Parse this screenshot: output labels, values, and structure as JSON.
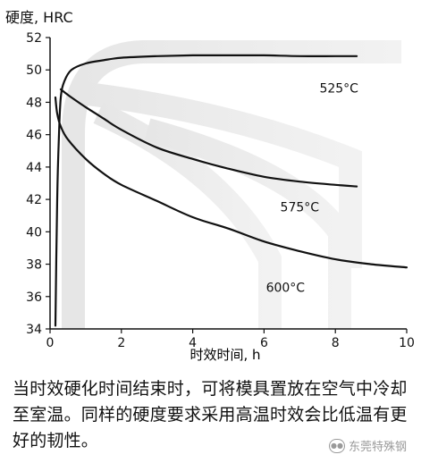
{
  "chart_data": {
    "type": "line",
    "ylabel": "硬度, HRC",
    "xlabel": "时效时间, h",
    "xlim": [
      0,
      10
    ],
    "ylim": [
      34,
      52
    ],
    "xticks": [
      "0",
      "2",
      "4",
      "6",
      "8",
      "10"
    ],
    "yticks": [
      "34",
      "36",
      "38",
      "40",
      "42",
      "44",
      "46",
      "48",
      "50",
      "52"
    ],
    "grid": false,
    "series": [
      {
        "name": "525°C",
        "x": [
          0.15,
          0.2,
          0.25,
          0.3,
          0.4,
          0.6,
          1,
          1.5,
          2,
          3,
          4,
          5,
          6,
          7,
          8,
          8.6
        ],
        "y": [
          34.2,
          42,
          46,
          48.3,
          49.3,
          50,
          50.4,
          50.6,
          50.75,
          50.85,
          50.9,
          50.9,
          50.9,
          50.85,
          50.85,
          50.85
        ]
      },
      {
        "name": "575°C",
        "x": [
          0.3,
          0.6,
          1,
          1.5,
          2,
          3,
          4,
          5,
          6,
          7,
          8,
          8.6
        ],
        "y": [
          48.8,
          48.3,
          47.7,
          47,
          46.3,
          45.2,
          44.5,
          43.9,
          43.4,
          43.1,
          42.9,
          42.8
        ]
      },
      {
        "name": "600°C",
        "x": [
          0.15,
          0.2,
          0.3,
          0.5,
          1,
          1.5,
          2,
          3,
          4,
          5,
          6,
          7,
          8,
          9,
          10
        ],
        "y": [
          48.3,
          47.3,
          46.5,
          45.7,
          44.5,
          43.6,
          42.9,
          41.9,
          40.9,
          40.2,
          39.4,
          38.8,
          38.3,
          38,
          37.8
        ]
      }
    ],
    "annotations": [
      "525°C",
      "575°C",
      "600°C"
    ]
  },
  "caption": "当时效硬化时间结束时，可将模具置放在空气中冷却至室温。同样的硬度要求采用高温时效会比低温有更好的韧性。",
  "watermark": "东莞特殊钢",
  "watermark_icon": "wechat-icon"
}
